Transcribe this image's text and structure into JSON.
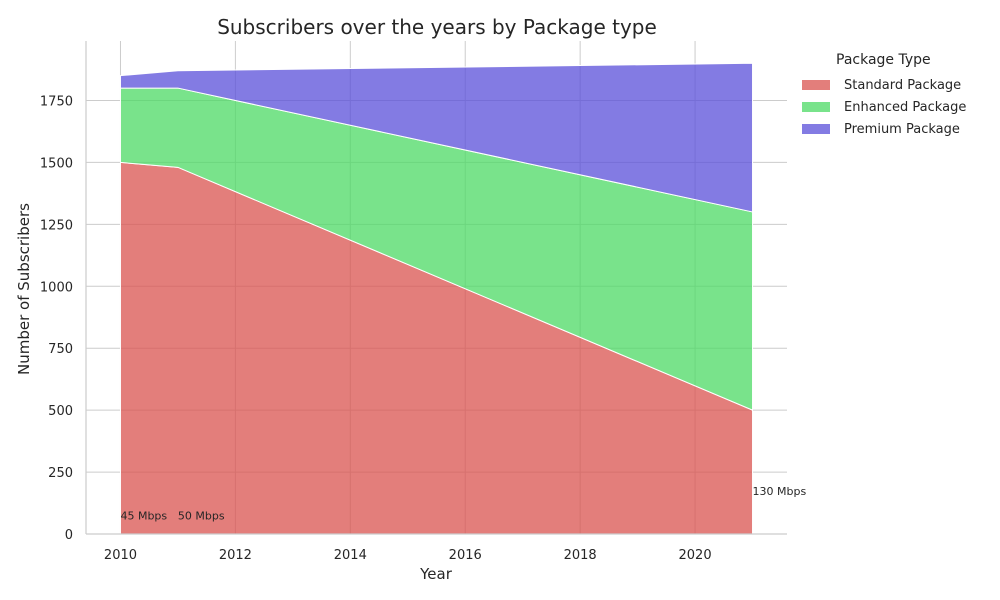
{
  "chart_data": {
    "type": "area",
    "stacked": true,
    "title": "Subscribers over the years by Package type",
    "xlabel": "Year",
    "ylabel": "Number of Subscribers",
    "xlim": [
      2009.4,
      2021.6
    ],
    "ylim": [
      0,
      1990
    ],
    "x_ticks": [
      2010,
      2012,
      2014,
      2016,
      2018,
      2020
    ],
    "y_ticks": [
      0,
      250,
      500,
      750,
      1000,
      1250,
      1500,
      1750
    ],
    "grid": true,
    "x": [
      2010,
      2011,
      2021
    ],
    "series": [
      {
        "name": "Standard Package",
        "color": "#d9534f",
        "values": [
          1500,
          1480,
          500
        ]
      },
      {
        "name": "Enhanced Package",
        "color": "#4cd964",
        "values": [
          300,
          320,
          800
        ]
      },
      {
        "name": "Premium Package",
        "color": "#5a4fd9",
        "values": [
          50,
          70,
          600
        ]
      }
    ],
    "annotations": [
      {
        "text": "45 Mbps",
        "x": 2010,
        "y": 50
      },
      {
        "text": "50 Mbps",
        "x": 2011,
        "y": 50
      },
      {
        "text": "130 Mbps",
        "x": 2021,
        "y": 150
      }
    ],
    "legend": {
      "title": "Package Type",
      "placement": "outside-right"
    }
  }
}
